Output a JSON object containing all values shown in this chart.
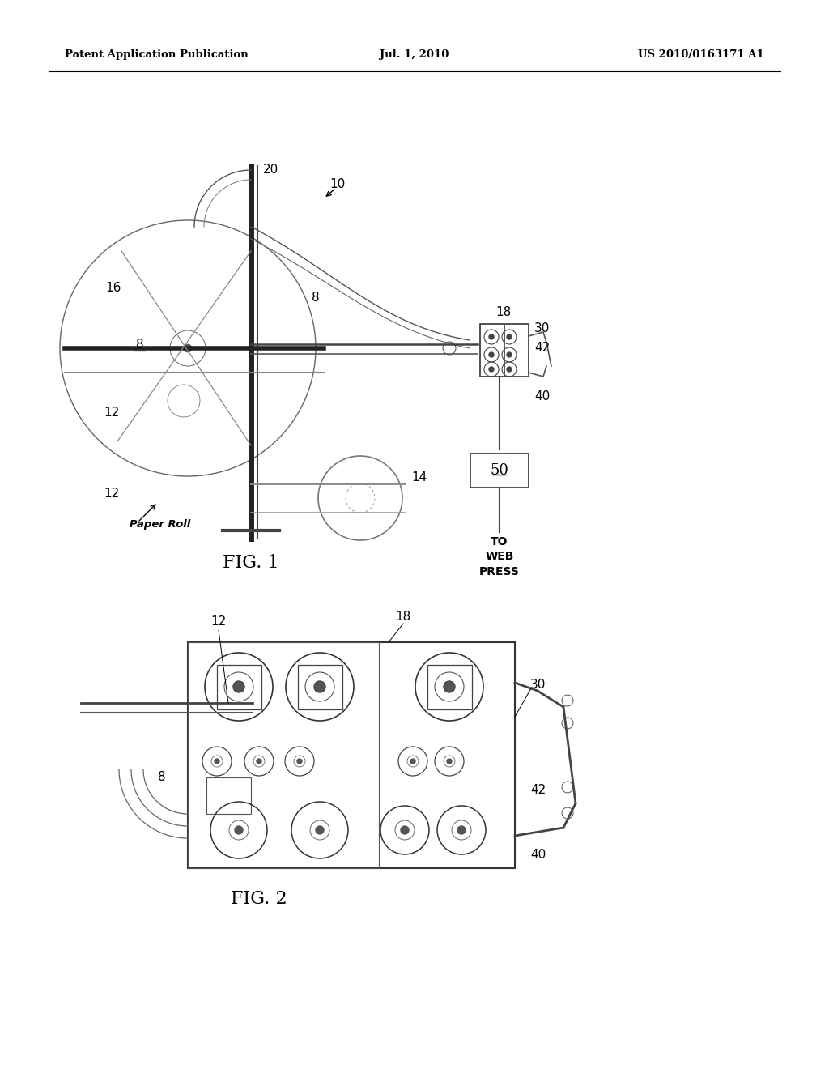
{
  "bg_color": "#ffffff",
  "header_left": "Patent Application Publication",
  "header_center": "Jul. 1, 2010",
  "header_right": "US 2010/0163171 A1",
  "fig1_label": "FIG. 1",
  "fig2_label": "FIG. 2"
}
